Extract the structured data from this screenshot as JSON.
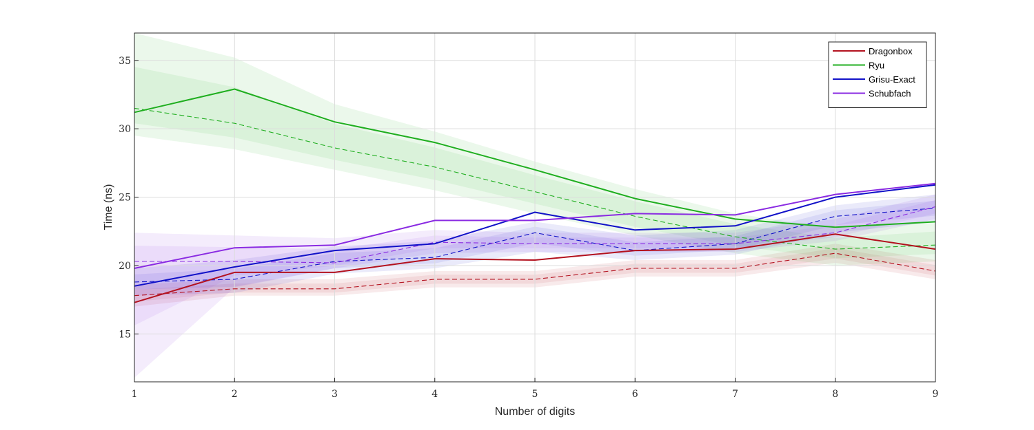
{
  "chart_data": {
    "type": "line",
    "title": "",
    "xlabel": "Number of digits",
    "ylabel": "Time (ns)",
    "x": [
      1,
      2,
      3,
      4,
      5,
      6,
      7,
      8,
      9
    ],
    "xlim": [
      1,
      9
    ],
    "ylim": [
      11.5,
      37
    ],
    "xticks": [
      1,
      2,
      3,
      4,
      5,
      6,
      7,
      8,
      9
    ],
    "yticks": [
      15,
      20,
      25,
      30,
      35
    ],
    "grid": true,
    "legend_position": "top-right",
    "series": [
      {
        "name": "Dragonbox",
        "color": "#b3111e",
        "values": [
          17.3,
          19.5,
          19.5,
          20.5,
          20.4,
          21.1,
          21.2,
          22.3,
          21.2
        ],
        "dashed_values": [
          17.8,
          18.3,
          18.3,
          19.0,
          19.0,
          19.8,
          19.8,
          20.9,
          19.6
        ],
        "band_lower": [
          17.0,
          17.8,
          17.8,
          18.4,
          18.4,
          19.2,
          19.2,
          20.2,
          19.0
        ],
        "band_upper": [
          18.6,
          19.0,
          19.0,
          19.6,
          19.6,
          20.4,
          20.4,
          21.6,
          20.4
        ]
      },
      {
        "name": "Ryu",
        "color": "#1fae1f",
        "values": [
          31.2,
          32.9,
          30.5,
          29.0,
          27.0,
          24.9,
          23.4,
          22.8,
          23.2
        ],
        "dashed_values": [
          31.5,
          30.4,
          28.6,
          27.2,
          25.4,
          23.6,
          22.1,
          21.2,
          21.5
        ],
        "band_lower": [
          29.5,
          28.5,
          27.0,
          25.5,
          23.8,
          22.2,
          20.9,
          20.0,
          20.3
        ],
        "band_upper": [
          37.0,
          35.2,
          31.8,
          29.8,
          27.6,
          25.6,
          23.8,
          22.7,
          23.3
        ]
      },
      {
        "name": "Grisu-Exact",
        "color": "#1111c8",
        "values": [
          18.5,
          19.9,
          21.1,
          21.6,
          23.9,
          22.6,
          22.9,
          25.0,
          25.9
        ],
        "dashed_values": [
          18.8,
          19.0,
          20.3,
          20.6,
          22.4,
          21.1,
          21.6,
          23.6,
          24.2
        ],
        "band_lower": [
          17.8,
          18.0,
          19.4,
          19.8,
          21.0,
          20.4,
          20.8,
          22.4,
          23.2
        ],
        "band_upper": [
          19.8,
          20.4,
          21.4,
          21.8,
          23.2,
          22.2,
          22.6,
          24.4,
          25.2
        ]
      },
      {
        "name": "Schubfach",
        "color": "#8a2be2",
        "values": [
          19.8,
          21.3,
          21.5,
          23.3,
          23.3,
          23.8,
          23.7,
          25.2,
          26.0
        ],
        "dashed_values": [
          20.3,
          20.3,
          20.2,
          21.7,
          21.6,
          21.6,
          21.6,
          22.4,
          24.3
        ],
        "band_lower": [
          11.8,
          18.4,
          19.8,
          20.9,
          21.0,
          21.0,
          21.0,
          21.8,
          23.4
        ],
        "band_upper": [
          22.4,
          22.2,
          22.0,
          22.6,
          22.4,
          22.4,
          22.4,
          23.4,
          25.2
        ]
      }
    ]
  }
}
